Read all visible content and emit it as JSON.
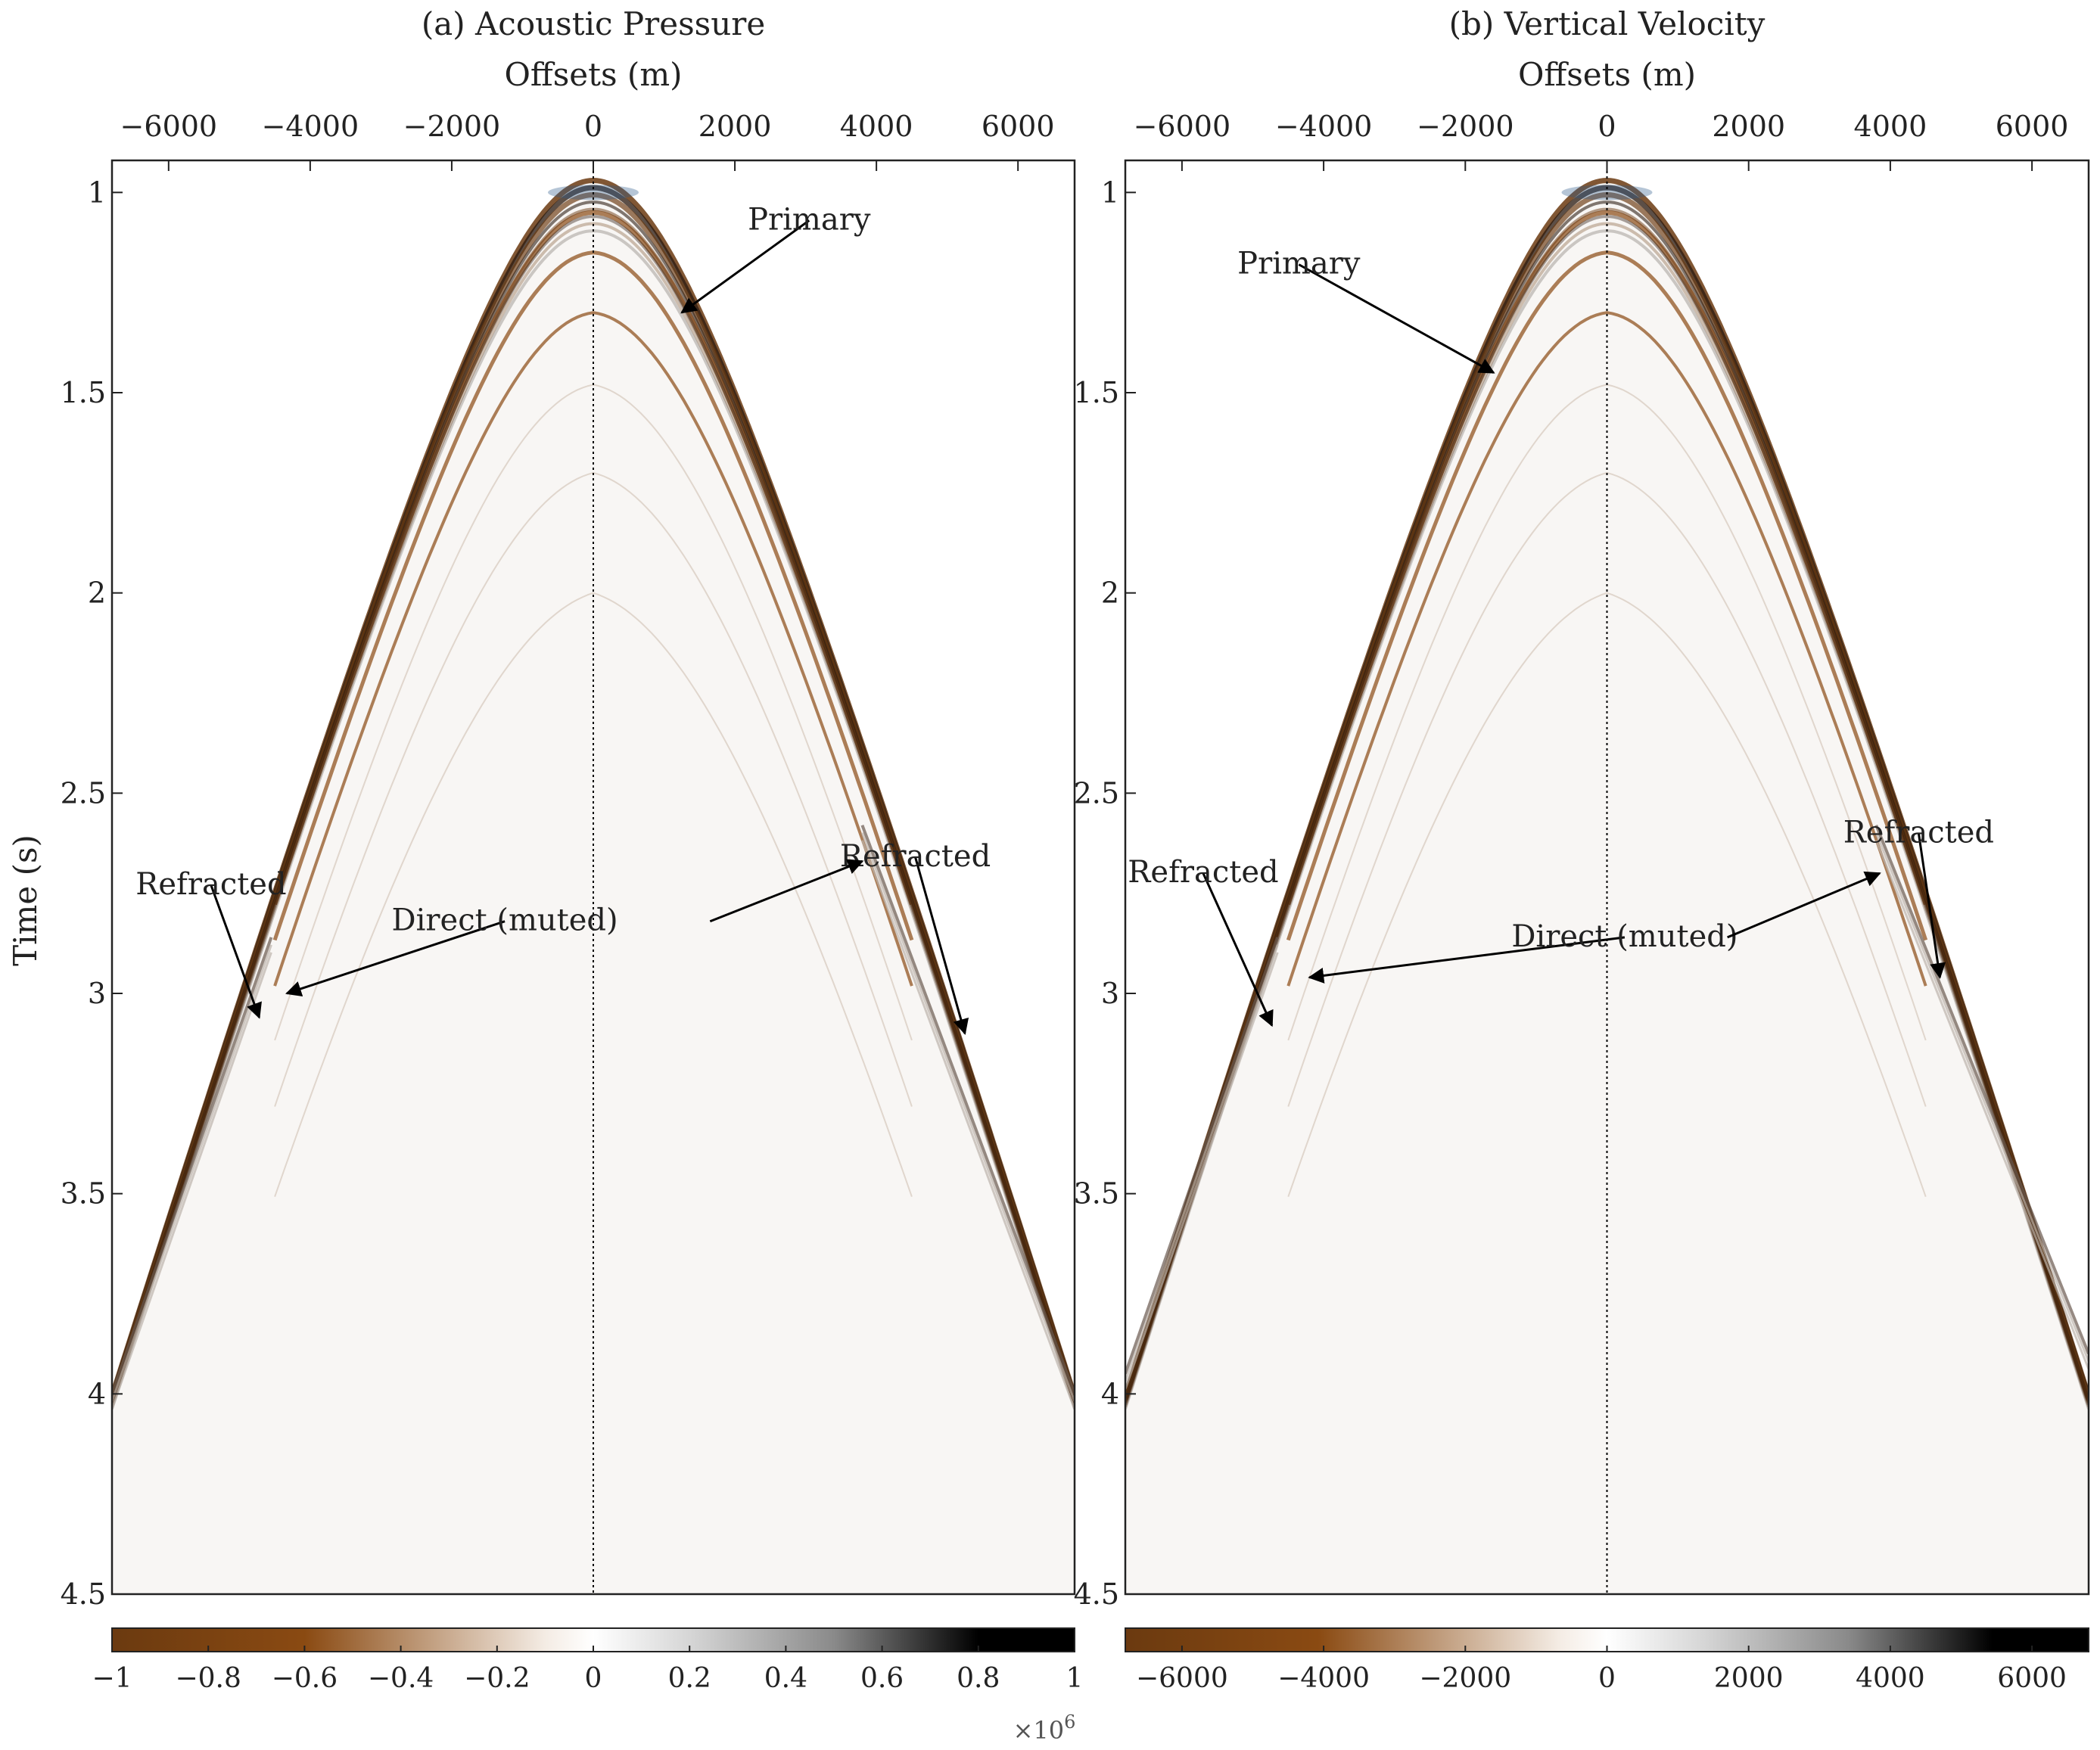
{
  "colors": {
    "brown_dark": "#6b3a10",
    "brown": "#8a4a12",
    "light": "#f4ece4",
    "white": "#ffffff",
    "grey": "#8a8a8a",
    "black": "#000000"
  },
  "chart_data": [
    {
      "type": "heatmap",
      "id": "a",
      "title": "(a) Acoustic Pressure",
      "xlabel": "Offsets (m)",
      "ylabel": "Time (s)",
      "xlim": [
        -6800,
        6800
      ],
      "ylim": [
        0.92,
        4.5
      ],
      "xticks": [
        -6000,
        -4000,
        -2000,
        0,
        2000,
        4000,
        6000
      ],
      "xtick_labels": [
        "−6000",
        "−4000",
        "−2000",
        "0",
        "2000",
        "4000",
        "6000"
      ],
      "yticks": [
        1,
        1.5,
        2,
        2.5,
        3,
        3.5,
        4,
        4.5
      ],
      "ytick_labels": [
        "1",
        "1.5",
        "2",
        "2.5",
        "3",
        "3.5",
        "4",
        "4.5"
      ],
      "colorbar": {
        "ticks": [
          -1,
          -0.8,
          -0.6,
          -0.4,
          -0.2,
          0,
          0.2,
          0.4,
          0.6,
          0.8,
          1
        ],
        "tick_labels": [
          "−1",
          "−0.8",
          "−0.6",
          "−0.4",
          "−0.2",
          "0",
          "0.2",
          "0.4",
          "0.6",
          "0.8",
          "1"
        ],
        "range": [
          -1,
          1
        ],
        "exponent_base": "×10",
        "exponent_power": "6"
      },
      "events": {
        "primary": {
          "apex_time": 0.97,
          "velocity": 1750
        },
        "refracted_left": {
          "x": [
            -4550,
            -6800
          ],
          "t": [
            2.86,
            4.0
          ]
        },
        "refracted_right": {
          "x": [
            3800,
            6800
          ],
          "t": [
            2.58,
            4.0
          ]
        }
      },
      "annotations": [
        {
          "text": "Primary",
          "label_x": 3050,
          "label_t": 1.07,
          "target_x": 1250,
          "target_t": 1.3
        },
        {
          "text": "Refracted",
          "label_x": 4550,
          "label_t": 2.66,
          "target_x": 5250,
          "target_t": 3.1
        },
        {
          "text": "Refracted",
          "label_x": -5400,
          "label_t": 2.73,
          "target_x": -4720,
          "target_t": 3.06
        },
        {
          "text": "Direct (muted)",
          "label_x": -1250,
          "label_t": 2.82,
          "target_x": -4330,
          "target_t": 3.0
        },
        {
          "text": "",
          "label_x": 1650,
          "label_t": 2.82,
          "target_x": 3800,
          "target_t": 2.67
        }
      ]
    },
    {
      "type": "heatmap",
      "id": "b",
      "title": "(b) Vertical Velocity",
      "xlabel": "Offsets (m)",
      "ylabel": "",
      "xlim": [
        -6800,
        6800
      ],
      "ylim": [
        0.92,
        4.5
      ],
      "xticks": [
        -6000,
        -4000,
        -2000,
        0,
        2000,
        4000,
        6000
      ],
      "xtick_labels": [
        "−6000",
        "−4000",
        "−2000",
        "0",
        "2000",
        "4000",
        "6000"
      ],
      "yticks": [
        1,
        1.5,
        2,
        2.5,
        3,
        3.5,
        4,
        4.5
      ],
      "ytick_labels": [
        "1",
        "1.5",
        "2",
        "2.5",
        "3",
        "3.5",
        "4",
        "4.5"
      ],
      "colorbar": {
        "ticks": [
          -6000,
          -4000,
          -2000,
          0,
          2000,
          4000,
          6000
        ],
        "tick_labels": [
          "−6000",
          "−4000",
          "−2000",
          "0",
          "2000",
          "4000",
          "6000"
        ],
        "range": [
          -6800,
          6800
        ]
      },
      "events": {
        "primary": {
          "apex_time": 0.97,
          "velocity": 1750
        },
        "refracted_left": {
          "x": [
            -4650,
            -6800
          ],
          "t": [
            2.86,
            3.95
          ]
        },
        "refracted_right": {
          "x": [
            3800,
            6800
          ],
          "t": [
            2.58,
            3.9
          ]
        }
      },
      "annotations": [
        {
          "text": "Primary",
          "label_x": -4350,
          "label_t": 1.18,
          "target_x": -1600,
          "target_t": 1.45
        },
        {
          "text": "Refracted",
          "label_x": 4400,
          "label_t": 2.6,
          "target_x": 4700,
          "target_t": 2.96
        },
        {
          "text": "Refracted",
          "label_x": -5700,
          "label_t": 2.7,
          "target_x": -4730,
          "target_t": 3.08
        },
        {
          "text": "Direct (muted)",
          "label_x": 250,
          "label_t": 2.86,
          "target_x": -4200,
          "target_t": 2.96
        },
        {
          "text": "",
          "label_x": 1700,
          "label_t": 2.86,
          "target_x": 3850,
          "target_t": 2.7
        }
      ]
    }
  ]
}
